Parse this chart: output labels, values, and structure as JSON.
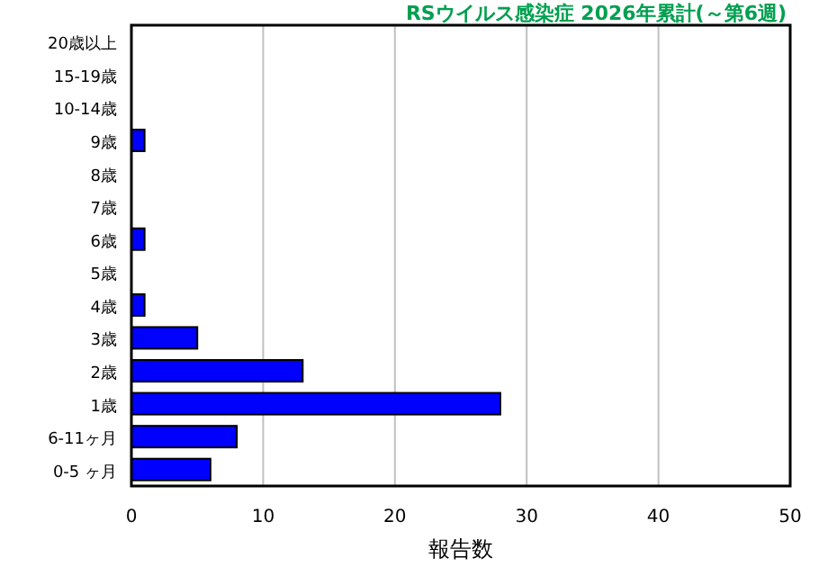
{
  "chart_data": {
    "type": "bar",
    "orientation": "horizontal",
    "title": "RSウイルス感染症 2026年累計(～第6週)",
    "xlabel": "報告数",
    "categories": [
      "20歳以上",
      "15-19歳",
      "10-14歳",
      "9歳",
      "8歳",
      "7歳",
      "6歳",
      "5歳",
      "4歳",
      "3歳",
      "2歳",
      "1歳",
      "6-11ヶ月",
      "0-5 ヶ月"
    ],
    "values": [
      0,
      0,
      0,
      1,
      0,
      0,
      1,
      0,
      1,
      5,
      13,
      28,
      8,
      6
    ],
    "color": "#0000ff",
    "xlim": [
      0,
      50
    ],
    "xticks": [
      0,
      10,
      20,
      30,
      40,
      50
    ],
    "grid": "x"
  }
}
